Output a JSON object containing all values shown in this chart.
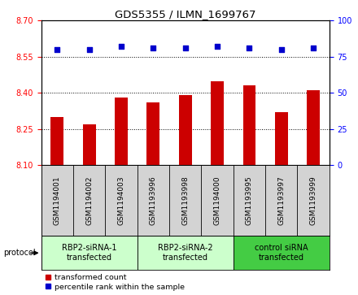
{
  "title": "GDS5355 / ILMN_1699767",
  "samples": [
    "GSM1194001",
    "GSM1194002",
    "GSM1194003",
    "GSM1193996",
    "GSM1193998",
    "GSM1194000",
    "GSM1193995",
    "GSM1193997",
    "GSM1193999"
  ],
  "red_values": [
    8.3,
    8.27,
    8.38,
    8.36,
    8.39,
    8.45,
    8.43,
    8.32,
    8.41
  ],
  "blue_values": [
    80,
    80,
    82,
    81,
    81,
    82,
    81,
    80,
    81
  ],
  "ylim_left": [
    8.1,
    8.7
  ],
  "ylim_right": [
    0,
    100
  ],
  "yticks_left": [
    8.1,
    8.25,
    8.4,
    8.55,
    8.7
  ],
  "yticks_right": [
    0,
    25,
    50,
    75,
    100
  ],
  "bar_color": "#cc0000",
  "dot_color": "#0000cc",
  "groups": [
    {
      "label": "RBP2-siRNA-1\ntransfected",
      "indices": [
        0,
        1,
        2
      ],
      "color": "#ccffcc"
    },
    {
      "label": "RBP2-siRNA-2\ntransfected",
      "indices": [
        3,
        4,
        5
      ],
      "color": "#ccffcc"
    },
    {
      "label": "control siRNA\ntransfected",
      "indices": [
        6,
        7,
        8
      ],
      "color": "#44cc44"
    }
  ],
  "protocol_label": "protocol",
  "grid_color": "#000000",
  "sample_bg_color": "#d3d3d3",
  "plot_bg": "#ffffff",
  "bar_width": 0.4,
  "legend_items": [
    {
      "label": "transformed count",
      "color": "#cc0000"
    },
    {
      "label": "percentile rank within the sample",
      "color": "#0000cc"
    }
  ]
}
